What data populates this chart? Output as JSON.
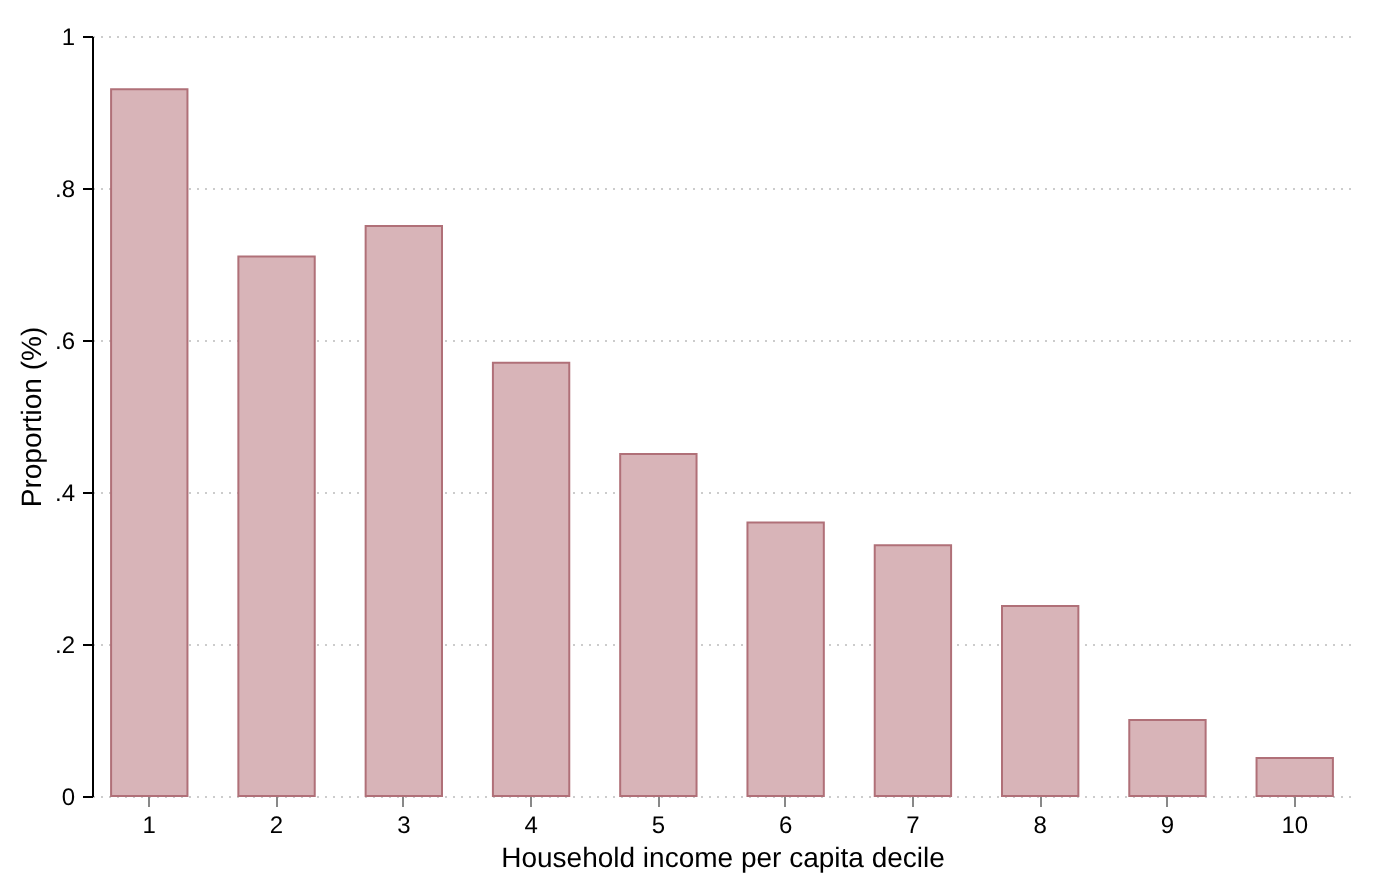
{
  "chart_data": {
    "type": "bar",
    "xlabel": "Household income per capita decile",
    "ylabel": "Proportion (%)",
    "categories": [
      "1",
      "2",
      "3",
      "4",
      "5",
      "6",
      "7",
      "8",
      "9",
      "10"
    ],
    "values": [
      0.93,
      0.71,
      0.75,
      0.57,
      0.45,
      0.36,
      0.33,
      0.25,
      0.1,
      0.05
    ],
    "color": "#d8b4b8",
    "ylim": [
      0,
      1
    ],
    "yticks": [
      0,
      {
        "value": 0.2,
        "label": ".2"
      },
      {
        "value": 0.4,
        "label": ".4"
      },
      {
        "value": 0.6,
        "label": ".6"
      },
      {
        "value": 0.8,
        "label": ".8"
      },
      1
    ],
    "grid": "y"
  }
}
